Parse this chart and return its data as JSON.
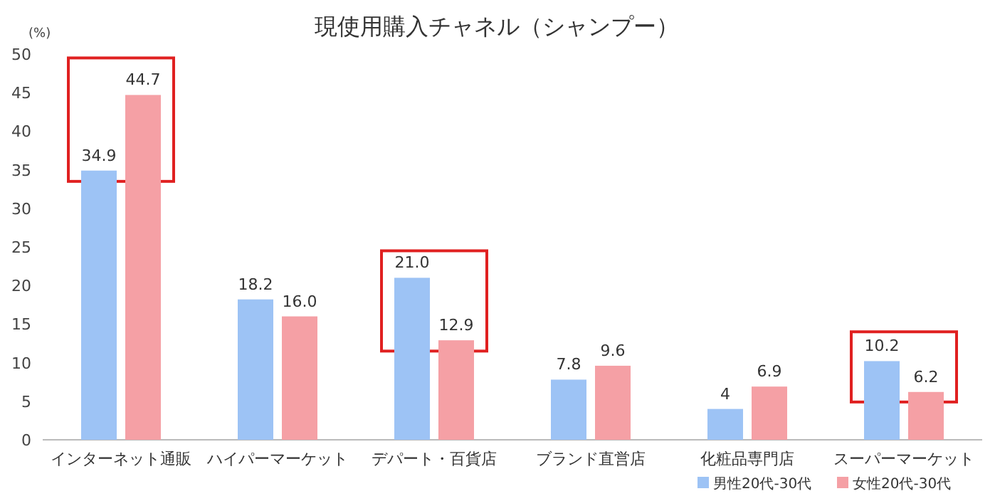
{
  "chart_data": {
    "type": "bar",
    "title": "現使用購入チャネル（シャンプー）",
    "ylabel": "(%)",
    "categories": [
      "インターネット通販",
      "ハイパーマーケット",
      "デパート・百貨店",
      "ブランド直営店",
      "化粧品専門店",
      "スーパーマーケット"
    ],
    "series": [
      {
        "name": "男性20代-30代",
        "color": "#9dc3f5",
        "values": [
          34.9,
          18.2,
          21.0,
          7.8,
          4,
          10.2
        ],
        "value_labels": [
          "34.9",
          "18.2",
          "21.0",
          "7.8",
          "4",
          "10.2"
        ]
      },
      {
        "name": "女性20代-30代",
        "color": "#f5a0a5",
        "values": [
          44.7,
          16.0,
          12.9,
          9.6,
          6.9,
          6.2
        ],
        "value_labels": [
          "44.7",
          "16.0",
          "12.9",
          "9.6",
          "6.9",
          "6.2"
        ]
      }
    ],
    "ylim": [
      0,
      50
    ],
    "yticks": [
      0,
      5,
      10,
      15,
      20,
      25,
      30,
      35,
      40,
      45,
      50
    ],
    "grid": false,
    "legend": "bottom right"
  }
}
